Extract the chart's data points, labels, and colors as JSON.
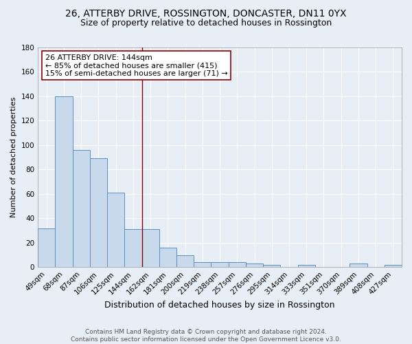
{
  "title": "26, ATTERBY DRIVE, ROSSINGTON, DONCASTER, DN11 0YX",
  "subtitle": "Size of property relative to detached houses in Rossington",
  "xlabel": "Distribution of detached houses by size in Rossington",
  "ylabel": "Number of detached properties",
  "categories": [
    "49sqm",
    "68sqm",
    "87sqm",
    "106sqm",
    "125sqm",
    "144sqm",
    "162sqm",
    "181sqm",
    "200sqm",
    "219sqm",
    "238sqm",
    "257sqm",
    "276sqm",
    "295sqm",
    "314sqm",
    "333sqm",
    "351sqm",
    "370sqm",
    "389sqm",
    "408sqm",
    "427sqm"
  ],
  "values": [
    32,
    140,
    96,
    89,
    61,
    31,
    31,
    16,
    10,
    4,
    4,
    4,
    3,
    2,
    0,
    2,
    0,
    0,
    3,
    0,
    2
  ],
  "bar_color": "#c8d9ec",
  "bar_edge_color": "#5a8fc0",
  "vline_color": "#8b0000",
  "annotation_text": "26 ATTERBY DRIVE: 144sqm\n← 85% of detached houses are smaller (415)\n15% of semi-detached houses are larger (71) →",
  "annotation_box_color": "white",
  "annotation_box_edge": "#8b0000",
  "ylim": [
    0,
    180
  ],
  "yticks": [
    0,
    20,
    40,
    60,
    80,
    100,
    120,
    140,
    160,
    180
  ],
  "background_color": "#e8eef5",
  "grid_color": "#ffffff",
  "footer": "Contains HM Land Registry data © Crown copyright and database right 2024.\nContains public sector information licensed under the Open Government Licence v3.0.",
  "title_fontsize": 10,
  "subtitle_fontsize": 9,
  "xlabel_fontsize": 9,
  "ylabel_fontsize": 8,
  "tick_fontsize": 7.5,
  "annotation_fontsize": 8,
  "footer_fontsize": 6.5
}
